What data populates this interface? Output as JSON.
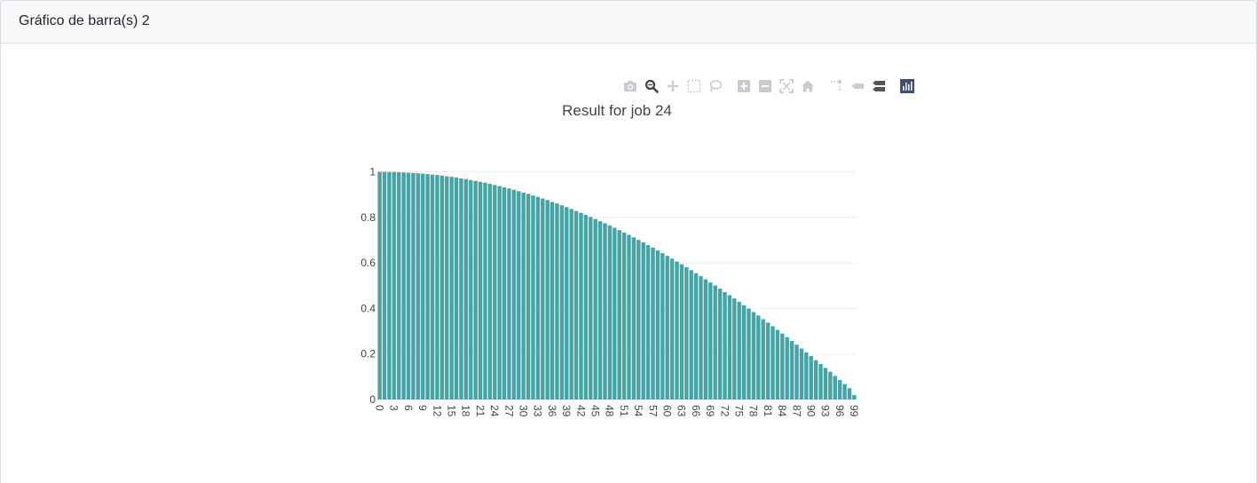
{
  "card": {
    "title": "Gráfico de barra(s) 2"
  },
  "modebar": {
    "buttons": [
      {
        "name": "camera-icon",
        "active": false
      },
      {
        "name": "zoom-icon",
        "active": true
      },
      {
        "name": "pan-icon",
        "active": false
      },
      {
        "name": "box-select-icon",
        "active": false
      },
      {
        "name": "lasso-select-icon",
        "active": false
      },
      {
        "name": "zoom-in-icon",
        "active": false
      },
      {
        "name": "zoom-out-icon",
        "active": false
      },
      {
        "name": "autoscale-icon",
        "active": false
      },
      {
        "name": "reset-axes-icon",
        "active": false
      },
      {
        "name": "spike-lines-icon",
        "active": false
      },
      {
        "name": "hover-closest-icon",
        "active": false
      },
      {
        "name": "hover-compare-icon",
        "active": true
      },
      {
        "name": "plotly-logo-icon",
        "active": false
      }
    ]
  },
  "colors": {
    "bar": "#45a5a6",
    "grid": "#eeeeee",
    "text": "#444444"
  },
  "chart_data": {
    "type": "bar",
    "title": "Result for job 24",
    "xlabel": "",
    "ylabel": "",
    "ylim": [
      0,
      1
    ],
    "yticks": [
      "0",
      "0.2",
      "0.4",
      "0.6",
      "0.8",
      "1"
    ],
    "xticks": [
      "0",
      "3",
      "6",
      "9",
      "12",
      "15",
      "18",
      "21",
      "24",
      "27",
      "30",
      "33",
      "36",
      "39",
      "42",
      "45",
      "48",
      "51",
      "54",
      "57",
      "60",
      "63",
      "66",
      "69",
      "72",
      "75",
      "78",
      "81",
      "84",
      "87",
      "90",
      "93",
      "96",
      "99"
    ],
    "grid": true,
    "x": [
      0,
      1,
      2,
      3,
      4,
      5,
      6,
      7,
      8,
      9,
      10,
      11,
      12,
      13,
      14,
      15,
      16,
      17,
      18,
      19,
      20,
      21,
      22,
      23,
      24,
      25,
      26,
      27,
      28,
      29,
      30,
      31,
      32,
      33,
      34,
      35,
      36,
      37,
      38,
      39,
      40,
      41,
      42,
      43,
      44,
      45,
      46,
      47,
      48,
      49,
      50,
      51,
      52,
      53,
      54,
      55,
      56,
      57,
      58,
      59,
      60,
      61,
      62,
      63,
      64,
      65,
      66,
      67,
      68,
      69,
      70,
      71,
      72,
      73,
      74,
      75,
      76,
      77,
      78,
      79,
      80,
      81,
      82,
      83,
      84,
      85,
      86,
      87,
      88,
      89,
      90,
      91,
      92,
      93,
      94,
      95,
      96,
      97,
      98,
      99
    ],
    "values": [
      1,
      1,
      0.999,
      0.999,
      0.998,
      0.997,
      0.996,
      0.995,
      0.994,
      0.992,
      0.99,
      0.988,
      0.986,
      0.983,
      0.98,
      0.978,
      0.975,
      0.971,
      0.968,
      0.964,
      0.96,
      0.956,
      0.952,
      0.947,
      0.942,
      0.937,
      0.932,
      0.927,
      0.921,
      0.915,
      0.909,
      0.903,
      0.896,
      0.89,
      0.883,
      0.876,
      0.868,
      0.861,
      0.853,
      0.845,
      0.837,
      0.828,
      0.82,
      0.811,
      0.802,
      0.793,
      0.783,
      0.774,
      0.764,
      0.754,
      0.744,
      0.733,
      0.723,
      0.712,
      0.701,
      0.69,
      0.678,
      0.667,
      0.655,
      0.643,
      0.631,
      0.619,
      0.606,
      0.594,
      0.581,
      0.568,
      0.555,
      0.542,
      0.528,
      0.514,
      0.501,
      0.487,
      0.472,
      0.458,
      0.444,
      0.429,
      0.414,
      0.399,
      0.384,
      0.369,
      0.353,
      0.338,
      0.322,
      0.306,
      0.29,
      0.274,
      0.257,
      0.241,
      0.224,
      0.207,
      0.191,
      0.173,
      0.156,
      0.139,
      0.122,
      0.104,
      0.086,
      0.068,
      0.05,
      0.02
    ]
  }
}
